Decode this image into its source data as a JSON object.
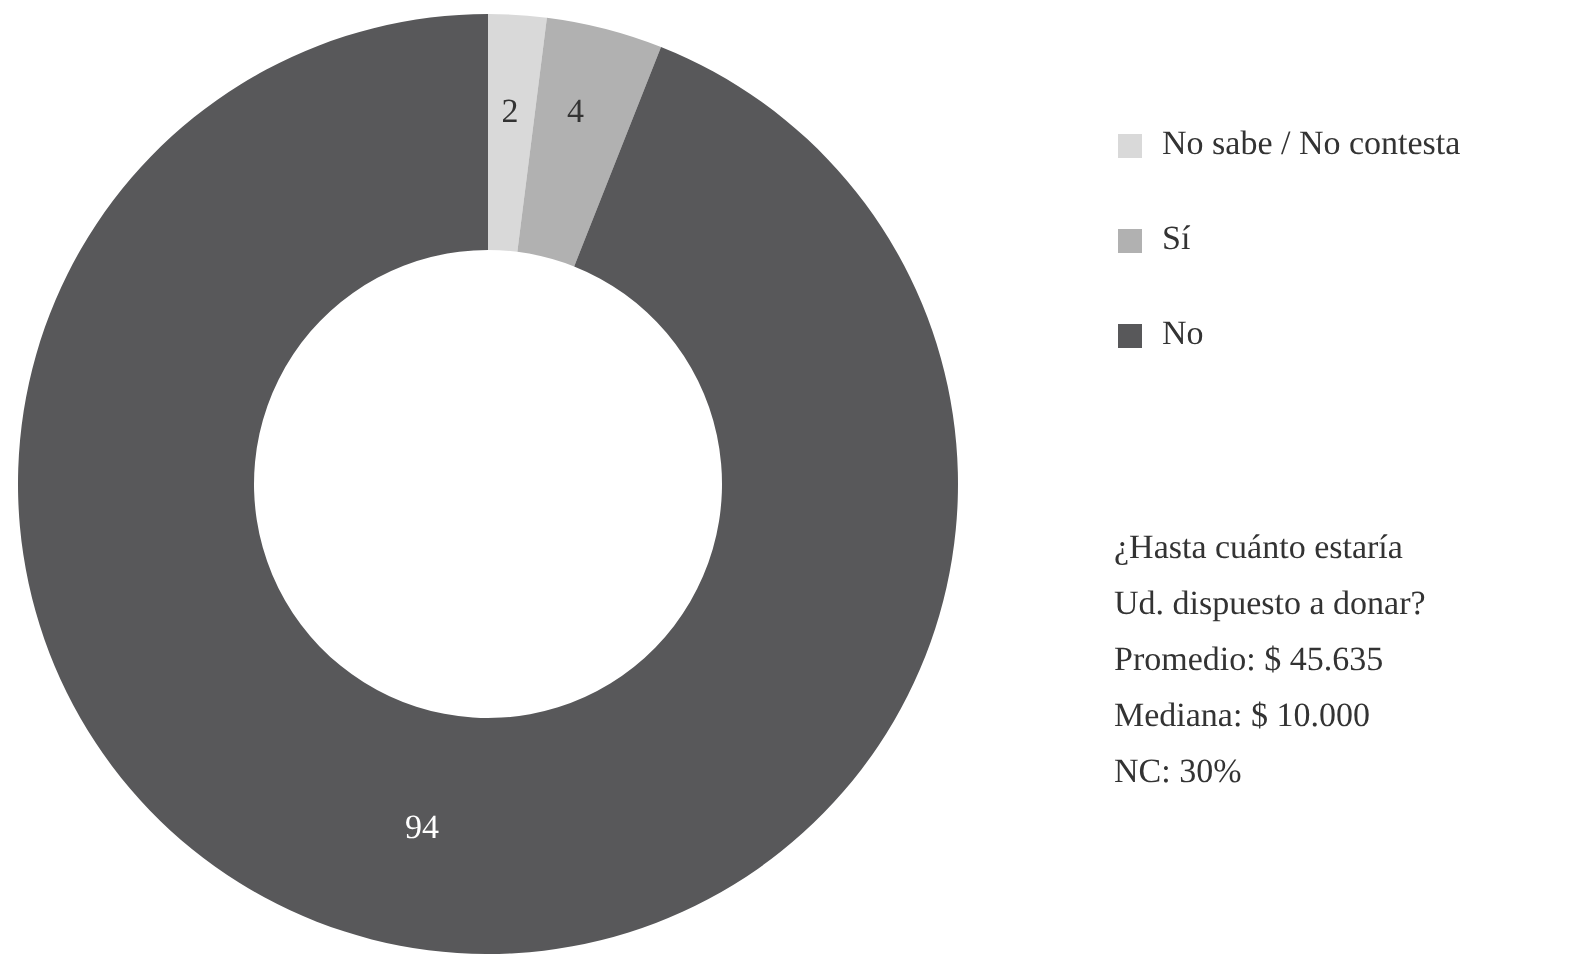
{
  "chart_data": {
    "type": "donut",
    "categories": [
      "No sabe / No contesta",
      "Sí",
      "No"
    ],
    "values": [
      2,
      4,
      94
    ],
    "colors": [
      "#d9d9d9",
      "#b1b1b1",
      "#58585a"
    ],
    "data_labels": true,
    "legend": "right",
    "annotations": [
      "¿Hasta cuánto estaría Ud. dispuesto a donar?",
      "Promedio: $ 45.635",
      "Mediana: $ 10.000",
      "NC: 30%"
    ]
  }
}
